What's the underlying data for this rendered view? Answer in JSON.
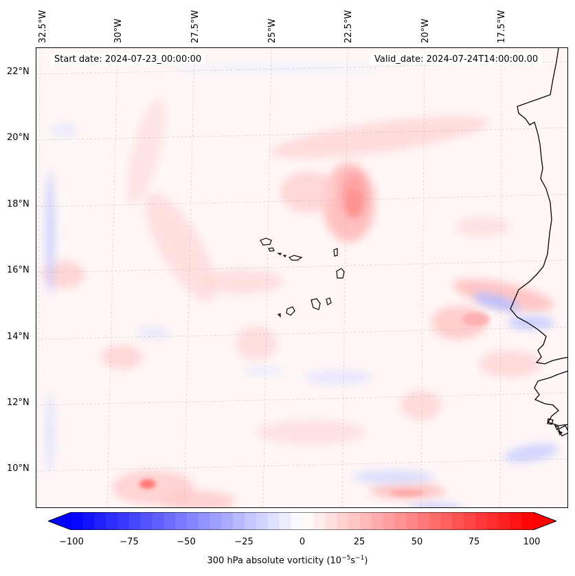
{
  "map": {
    "start_date_text": "Start date: 2024-07-23_00:00:00",
    "valid_date_text": "Valid_date: 2024-07-24T14:00:00.00",
    "lon_ticks": [
      "32.5°W",
      "30°W",
      "27.5°W",
      "25°W",
      "22.5°W",
      "20°W",
      "17.5°W"
    ],
    "lat_ticks": [
      "22°N",
      "20°N",
      "18°N",
      "16°N",
      "14°N",
      "12°N",
      "10°N"
    ],
    "field": "300 hPa absolute vorticity",
    "colors": {
      "max": "#ff0000",
      "min": "#0000ff",
      "mid": "#ffffff",
      "coast": "#000000"
    }
  },
  "colorbar": {
    "label_prefix": "300 hPa absolute vorticity (10",
    "label_exp1": "−5",
    "label_mid": "s",
    "label_exp2": "−1",
    "label_suffix": ")",
    "tick_labels": [
      "−100",
      "−75",
      "−50",
      "−25",
      "0",
      "25",
      "50",
      "75",
      "100"
    ],
    "vmin": -100,
    "vmax": 100,
    "levels": 41
  }
}
